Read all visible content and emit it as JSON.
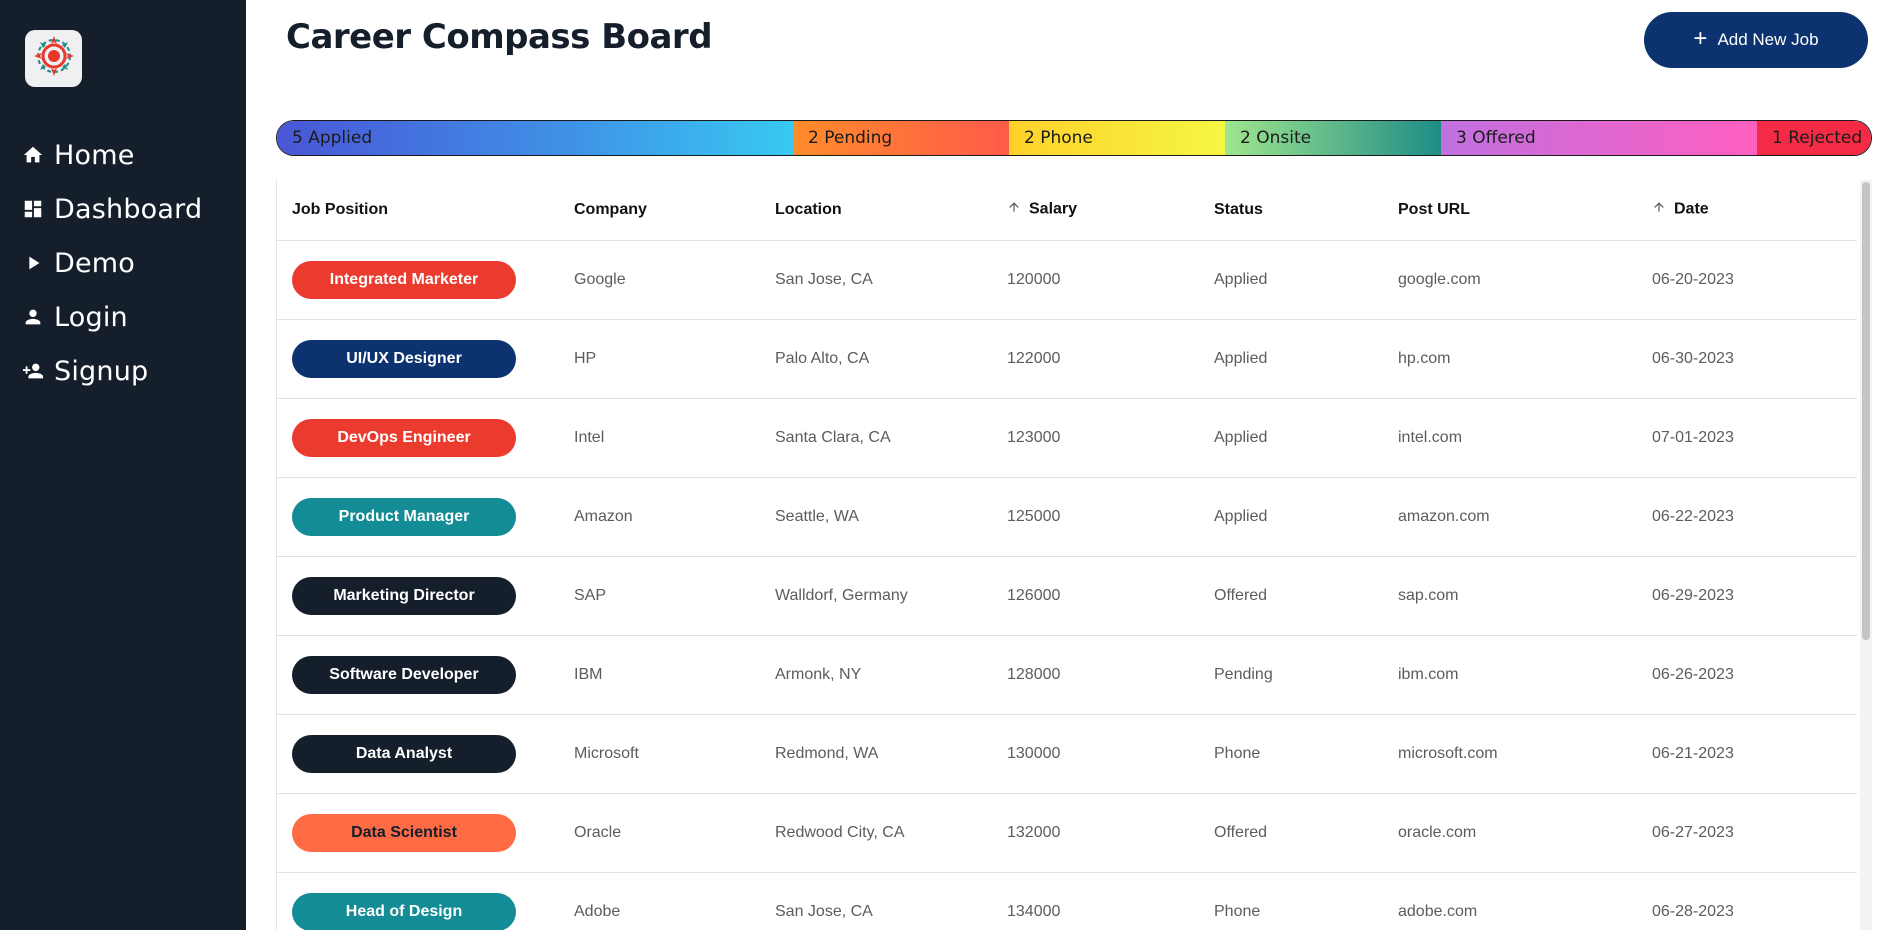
{
  "sidebar": {
    "logo_icon": "compass-icon",
    "items": [
      {
        "label": "Home",
        "icon": "home-icon"
      },
      {
        "label": "Dashboard",
        "icon": "dashboard-icon"
      },
      {
        "label": "Demo",
        "icon": "play-icon"
      },
      {
        "label": "Login",
        "icon": "person-icon"
      },
      {
        "label": "Signup",
        "icon": "person-add-icon"
      }
    ]
  },
  "header": {
    "title": "Career Compass Board",
    "add_button_label": "Add New Job",
    "add_button_icon": "plus-icon"
  },
  "status_bar": {
    "segments": [
      {
        "label": "5 Applied",
        "count": 5,
        "status": "Applied"
      },
      {
        "label": "2 Pending",
        "count": 2,
        "status": "Pending"
      },
      {
        "label": "2 Phone",
        "count": 2,
        "status": "Phone"
      },
      {
        "label": "2 Onsite",
        "count": 2,
        "status": "Onsite"
      },
      {
        "label": "3 Offered",
        "count": 3,
        "status": "Offered"
      },
      {
        "label": "1 Rejected",
        "count": 1,
        "status": "Rejected"
      }
    ]
  },
  "table": {
    "columns": [
      {
        "label": "Job Position",
        "sorted": false
      },
      {
        "label": "Company",
        "sorted": false
      },
      {
        "label": "Location",
        "sorted": false
      },
      {
        "label": "Salary",
        "sorted": true,
        "direction": "asc"
      },
      {
        "label": "Status",
        "sorted": false
      },
      {
        "label": "Post URL",
        "sorted": false
      },
      {
        "label": "Date",
        "sorted": true,
        "direction": "asc"
      }
    ],
    "rows": [
      {
        "position": "Integrated Marketer",
        "pill_color": "#eb3b2e",
        "pill_text_color": "#ffffff",
        "company": "Google",
        "location": "San Jose, CA",
        "salary": "120000",
        "status": "Applied",
        "url": "google.com",
        "date": "06-20-2023"
      },
      {
        "position": "UI/UX Designer",
        "pill_color": "#0d3270",
        "pill_text_color": "#ffffff",
        "company": "HP",
        "location": "Palo Alto, CA",
        "salary": "122000",
        "status": "Applied",
        "url": "hp.com",
        "date": "06-30-2023"
      },
      {
        "position": "DevOps Engineer",
        "pill_color": "#eb3b2e",
        "pill_text_color": "#ffffff",
        "company": "Intel",
        "location": "Santa Clara, CA",
        "salary": "123000",
        "status": "Applied",
        "url": "intel.com",
        "date": "07-01-2023"
      },
      {
        "position": "Product Manager",
        "pill_color": "#138c95",
        "pill_text_color": "#ffffff",
        "company": "Amazon",
        "location": "Seattle, WA",
        "salary": "125000",
        "status": "Applied",
        "url": "amazon.com",
        "date": "06-22-2023"
      },
      {
        "position": "Marketing Director",
        "pill_color": "#151e2b",
        "pill_text_color": "#ffffff",
        "company": "SAP",
        "location": "Walldorf, Germany",
        "salary": "126000",
        "status": "Offered",
        "url": "sap.com",
        "date": "06-29-2023"
      },
      {
        "position": "Software Developer",
        "pill_color": "#151e2b",
        "pill_text_color": "#ffffff",
        "company": "IBM",
        "location": "Armonk, NY",
        "salary": "128000",
        "status": "Pending",
        "url": "ibm.com",
        "date": "06-26-2023"
      },
      {
        "position": "Data Analyst",
        "pill_color": "#151e2b",
        "pill_text_color": "#ffffff",
        "company": "Microsoft",
        "location": "Redmond, WA",
        "salary": "130000",
        "status": "Phone",
        "url": "microsoft.com",
        "date": "06-21-2023"
      },
      {
        "position": "Data Scientist",
        "pill_color": "#ff6b45",
        "pill_text_color": "#151e2b",
        "company": "Oracle",
        "location": "Redwood City, CA",
        "salary": "132000",
        "status": "Offered",
        "url": "oracle.com",
        "date": "06-27-2023"
      },
      {
        "position": "Head of Design",
        "pill_color": "#138c95",
        "pill_text_color": "#ffffff",
        "company": "Adobe",
        "location": "San Jose, CA",
        "salary": "134000",
        "status": "Phone",
        "url": "adobe.com",
        "date": "06-28-2023"
      }
    ]
  },
  "colors": {
    "sidebar_bg": "#151e2b",
    "accent": "#0d3270"
  }
}
